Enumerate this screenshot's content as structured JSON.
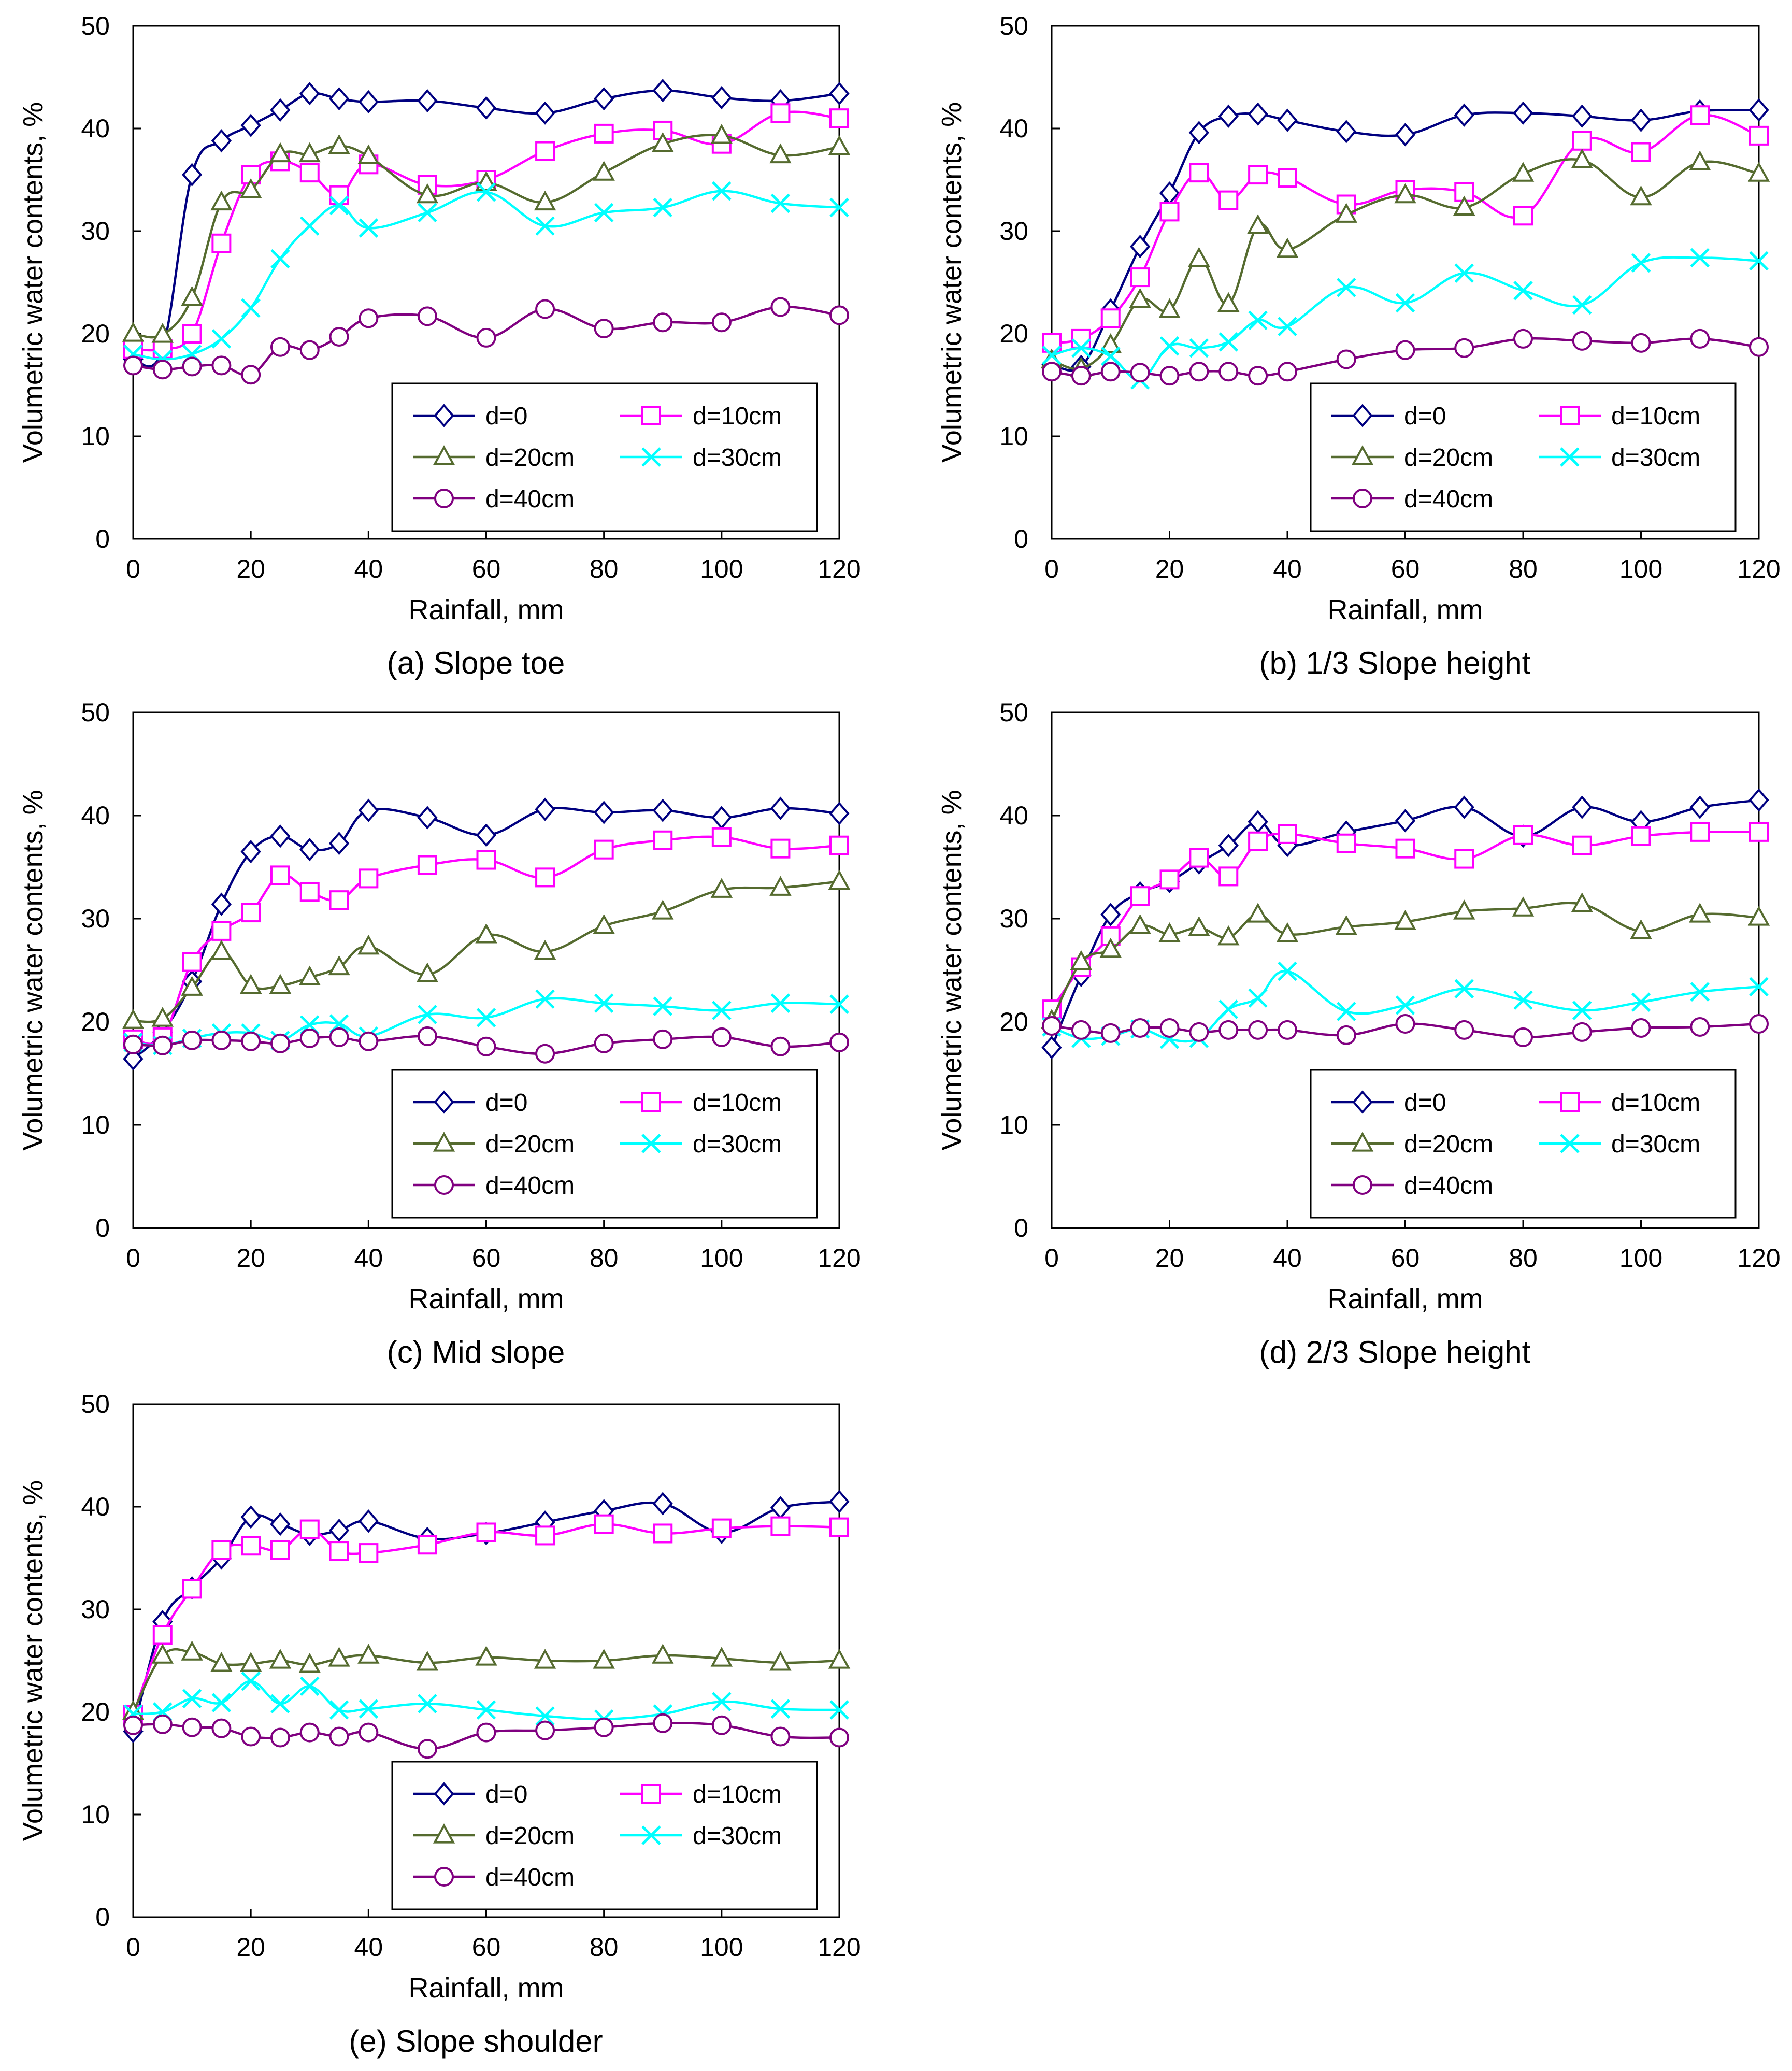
{
  "chart_data": [
    {
      "type": "line",
      "caption": "(a) Slope toe",
      "xlabel": "Rainfall, mm",
      "ylabel": "Volumetric water contents, %",
      "xlim": [
        0,
        120
      ],
      "ylim": [
        0,
        50
      ],
      "xticks": [
        "0",
        "20",
        "40",
        "60",
        "80",
        "100",
        "120"
      ],
      "yticks": [
        "0",
        "10",
        "20",
        "30",
        "40",
        "50"
      ],
      "x": [
        0,
        5,
        10,
        15,
        20,
        25,
        30,
        35,
        40,
        50,
        60,
        70,
        80,
        90,
        100,
        110,
        120
      ],
      "series": [
        {
          "name": "d=0",
          "values": [
            17.5,
            18.5,
            35.5,
            38.8,
            40.3,
            41.8,
            43.4,
            42.9,
            42.6,
            42.7,
            42.0,
            41.5,
            42.9,
            43.7,
            43.0,
            42.7,
            43.4
          ]
        },
        {
          "name": "d=10cm",
          "values": [
            18.5,
            18.5,
            20.0,
            28.8,
            35.5,
            36.8,
            35.7,
            33.5,
            36.5,
            34.5,
            35.0,
            37.8,
            39.5,
            39.8,
            38.5,
            41.5,
            41.0
          ]
        },
        {
          "name": "d=20cm",
          "values": [
            20.0,
            19.9,
            23.5,
            32.8,
            34.0,
            37.5,
            37.5,
            38.3,
            37.3,
            33.5,
            34.7,
            32.8,
            35.7,
            38.5,
            39.3,
            37.4,
            38.2
          ]
        },
        {
          "name": "d=30cm",
          "values": [
            18.0,
            17.5,
            18.0,
            19.5,
            22.5,
            27.3,
            30.5,
            32.5,
            30.3,
            31.8,
            33.8,
            30.5,
            31.8,
            32.3,
            33.9,
            32.7,
            32.3
          ]
        },
        {
          "name": "d=40cm",
          "values": [
            16.9,
            16.5,
            16.8,
            16.9,
            16.0,
            18.7,
            18.4,
            19.7,
            21.5,
            21.7,
            19.6,
            22.4,
            20.5,
            21.1,
            21.1,
            22.6,
            21.8
          ]
        }
      ]
    },
    {
      "type": "line",
      "caption": "(b) 1/3 Slope height",
      "xlabel": "Rainfall, mm",
      "ylabel": "Volumetric water contents, %",
      "xlim": [
        0,
        120
      ],
      "ylim": [
        0,
        50
      ],
      "xticks": [
        "0",
        "20",
        "40",
        "60",
        "80",
        "100",
        "120"
      ],
      "yticks": [
        "0",
        "10",
        "20",
        "30",
        "40",
        "50"
      ],
      "x": [
        0,
        5,
        10,
        15,
        20,
        25,
        30,
        35,
        40,
        50,
        60,
        70,
        80,
        90,
        100,
        110,
        120
      ],
      "series": [
        {
          "name": "d=0",
          "values": [
            17.0,
            16.8,
            22.3,
            28.5,
            33.7,
            39.6,
            41.2,
            41.4,
            40.8,
            39.7,
            39.4,
            41.3,
            41.5,
            41.2,
            40.8,
            41.7,
            41.8
          ]
        },
        {
          "name": "d=10cm",
          "values": [
            19.1,
            19.5,
            21.5,
            25.5,
            31.9,
            35.7,
            33.0,
            35.5,
            35.2,
            32.6,
            34.0,
            33.8,
            31.5,
            38.8,
            37.7,
            41.3,
            39.3
          ]
        },
        {
          "name": "d=20cm",
          "values": [
            17.4,
            16.6,
            18.9,
            23.3,
            22.3,
            27.3,
            22.9,
            30.5,
            28.2,
            31.6,
            33.5,
            32.3,
            35.6,
            36.9,
            33.3,
            36.7,
            35.6
          ]
        },
        {
          "name": "d=30cm",
          "values": [
            17.9,
            18.6,
            17.8,
            15.5,
            18.8,
            18.6,
            19.2,
            21.3,
            20.7,
            24.5,
            23.0,
            25.9,
            24.2,
            22.8,
            26.9,
            27.4,
            27.1
          ]
        },
        {
          "name": "d=40cm",
          "values": [
            16.3,
            15.9,
            16.3,
            16.2,
            15.9,
            16.3,
            16.3,
            15.9,
            16.3,
            17.5,
            18.4,
            18.6,
            19.5,
            19.3,
            19.1,
            19.5,
            18.7
          ]
        }
      ]
    },
    {
      "type": "line",
      "caption": "(c) Mid slope",
      "xlabel": "Rainfall, mm",
      "ylabel": "Volumetric water contents, %",
      "xlim": [
        0,
        120
      ],
      "ylim": [
        0,
        50
      ],
      "xticks": [
        "0",
        "20",
        "40",
        "60",
        "80",
        "100",
        "120"
      ],
      "yticks": [
        "0",
        "10",
        "20",
        "30",
        "40",
        "50"
      ],
      "x": [
        0,
        5,
        10,
        15,
        20,
        25,
        30,
        35,
        40,
        50,
        60,
        70,
        80,
        90,
        100,
        110,
        120
      ],
      "series": [
        {
          "name": "d=0",
          "values": [
            16.4,
            19.0,
            23.9,
            31.4,
            36.5,
            38.0,
            36.7,
            37.3,
            40.5,
            39.8,
            38.1,
            40.6,
            40.3,
            40.5,
            39.8,
            40.7,
            40.2
          ]
        },
        {
          "name": "d=10cm",
          "values": [
            18.3,
            18.5,
            25.8,
            28.8,
            30.6,
            34.2,
            32.6,
            31.8,
            33.9,
            35.2,
            35.7,
            34.0,
            36.7,
            37.6,
            37.9,
            36.8,
            37.1
          ]
        },
        {
          "name": "d=20cm",
          "values": [
            20.1,
            20.3,
            23.3,
            26.8,
            23.5,
            23.5,
            24.3,
            25.3,
            27.3,
            24.6,
            28.4,
            26.8,
            29.3,
            30.7,
            32.8,
            33.0,
            33.6
          ]
        },
        {
          "name": "d=30cm",
          "values": [
            18.0,
            17.7,
            18.4,
            18.9,
            18.9,
            18.2,
            19.7,
            19.8,
            18.6,
            20.7,
            20.4,
            22.2,
            21.8,
            21.5,
            21.1,
            21.8,
            21.7
          ]
        },
        {
          "name": "d=40cm",
          "values": [
            17.8,
            17.7,
            18.2,
            18.2,
            18.1,
            17.9,
            18.4,
            18.5,
            18.1,
            18.6,
            17.6,
            16.9,
            17.9,
            18.3,
            18.5,
            17.6,
            18.0
          ]
        }
      ]
    },
    {
      "type": "line",
      "caption": "(d) 2/3 Slope height",
      "xlabel": "Rainfall, mm",
      "ylabel": "Volumetric water contents, %",
      "xlim": [
        0,
        120
      ],
      "ylim": [
        0,
        50
      ],
      "xticks": [
        "0",
        "20",
        "40",
        "60",
        "80",
        "100",
        "120"
      ],
      "yticks": [
        "0",
        "10",
        "20",
        "30",
        "40",
        "50"
      ],
      "x": [
        0,
        5,
        10,
        15,
        20,
        25,
        30,
        35,
        40,
        50,
        60,
        70,
        80,
        90,
        100,
        110,
        120
      ],
      "series": [
        {
          "name": "d=0",
          "values": [
            17.5,
            24.5,
            30.4,
            32.5,
            33.6,
            35.4,
            37.1,
            39.4,
            37.1,
            38.4,
            39.5,
            40.8,
            38.0,
            40.8,
            39.4,
            40.8,
            41.5
          ]
        },
        {
          "name": "d=10cm",
          "values": [
            21.2,
            25.3,
            28.3,
            32.2,
            33.8,
            35.9,
            34.1,
            37.5,
            38.2,
            37.3,
            36.8,
            35.8,
            38.1,
            37.1,
            38.0,
            38.4,
            38.4
          ]
        },
        {
          "name": "d=20cm",
          "values": [
            20.1,
            25.8,
            27.0,
            29.3,
            28.5,
            29.1,
            28.2,
            30.4,
            28.5,
            29.2,
            29.7,
            30.7,
            31.0,
            31.4,
            28.8,
            30.4,
            30.1
          ]
        },
        {
          "name": "d=30cm",
          "values": [
            19.5,
            18.4,
            18.6,
            19.3,
            18.3,
            18.4,
            21.2,
            22.3,
            24.9,
            21.0,
            21.6,
            23.2,
            22.1,
            21.1,
            21.9,
            22.9,
            23.4
          ]
        },
        {
          "name": "d=40cm",
          "values": [
            19.6,
            19.2,
            18.9,
            19.4,
            19.4,
            19.0,
            19.2,
            19.2,
            19.2,
            18.7,
            19.8,
            19.2,
            18.5,
            19.0,
            19.4,
            19.5,
            19.8
          ]
        }
      ]
    },
    {
      "type": "line",
      "caption": "(e) Slope shoulder",
      "xlabel": "Rainfall, mm",
      "ylabel": "Volumetric water contents, %",
      "xlim": [
        0,
        120
      ],
      "ylim": [
        0,
        50
      ],
      "xticks": [
        "0",
        "20",
        "40",
        "60",
        "80",
        "100",
        "120"
      ],
      "yticks": [
        "0",
        "10",
        "20",
        "30",
        "40",
        "50"
      ],
      "x": [
        0,
        5,
        10,
        15,
        20,
        25,
        30,
        35,
        40,
        50,
        60,
        70,
        80,
        90,
        100,
        110,
        120
      ],
      "series": [
        {
          "name": "d=0",
          "values": [
            18.1,
            28.8,
            32.1,
            35.0,
            39.0,
            38.3,
            37.3,
            37.7,
            38.6,
            36.9,
            37.4,
            38.5,
            39.6,
            40.3,
            37.5,
            39.9,
            40.5
          ]
        },
        {
          "name": "d=10cm",
          "values": [
            19.7,
            27.5,
            32.0,
            35.8,
            36.2,
            35.8,
            37.8,
            35.7,
            35.5,
            36.3,
            37.5,
            37.2,
            38.3,
            37.4,
            37.9,
            38.1,
            38.0
          ]
        },
        {
          "name": "d=20cm",
          "values": [
            20.0,
            25.5,
            25.8,
            24.7,
            24.7,
            25.0,
            24.6,
            25.2,
            25.5,
            24.8,
            25.3,
            25.0,
            25.0,
            25.5,
            25.2,
            24.8,
            25.0
          ]
        },
        {
          "name": "d=30cm",
          "values": [
            19.8,
            20.0,
            21.3,
            20.9,
            23.0,
            20.8,
            22.5,
            20.2,
            20.3,
            20.8,
            20.2,
            19.6,
            19.3,
            19.8,
            21.0,
            20.3,
            20.2
          ]
        },
        {
          "name": "d=40cm",
          "values": [
            18.7,
            18.8,
            18.5,
            18.4,
            17.6,
            17.5,
            18.0,
            17.6,
            18.0,
            16.4,
            18.0,
            18.2,
            18.5,
            18.9,
            18.7,
            17.6,
            17.5
          ]
        }
      ]
    }
  ],
  "series_styles": [
    {
      "name": "d=0",
      "color": "#000080",
      "marker": "diamond"
    },
    {
      "name": "d=10cm",
      "color": "#ff00ff",
      "marker": "square"
    },
    {
      "name": "d=20cm",
      "color": "#556b2f",
      "marker": "triangle"
    },
    {
      "name": "d=30cm",
      "color": "#00ffff",
      "marker": "x"
    },
    {
      "name": "d=40cm",
      "color": "#800080",
      "marker": "circle"
    }
  ]
}
